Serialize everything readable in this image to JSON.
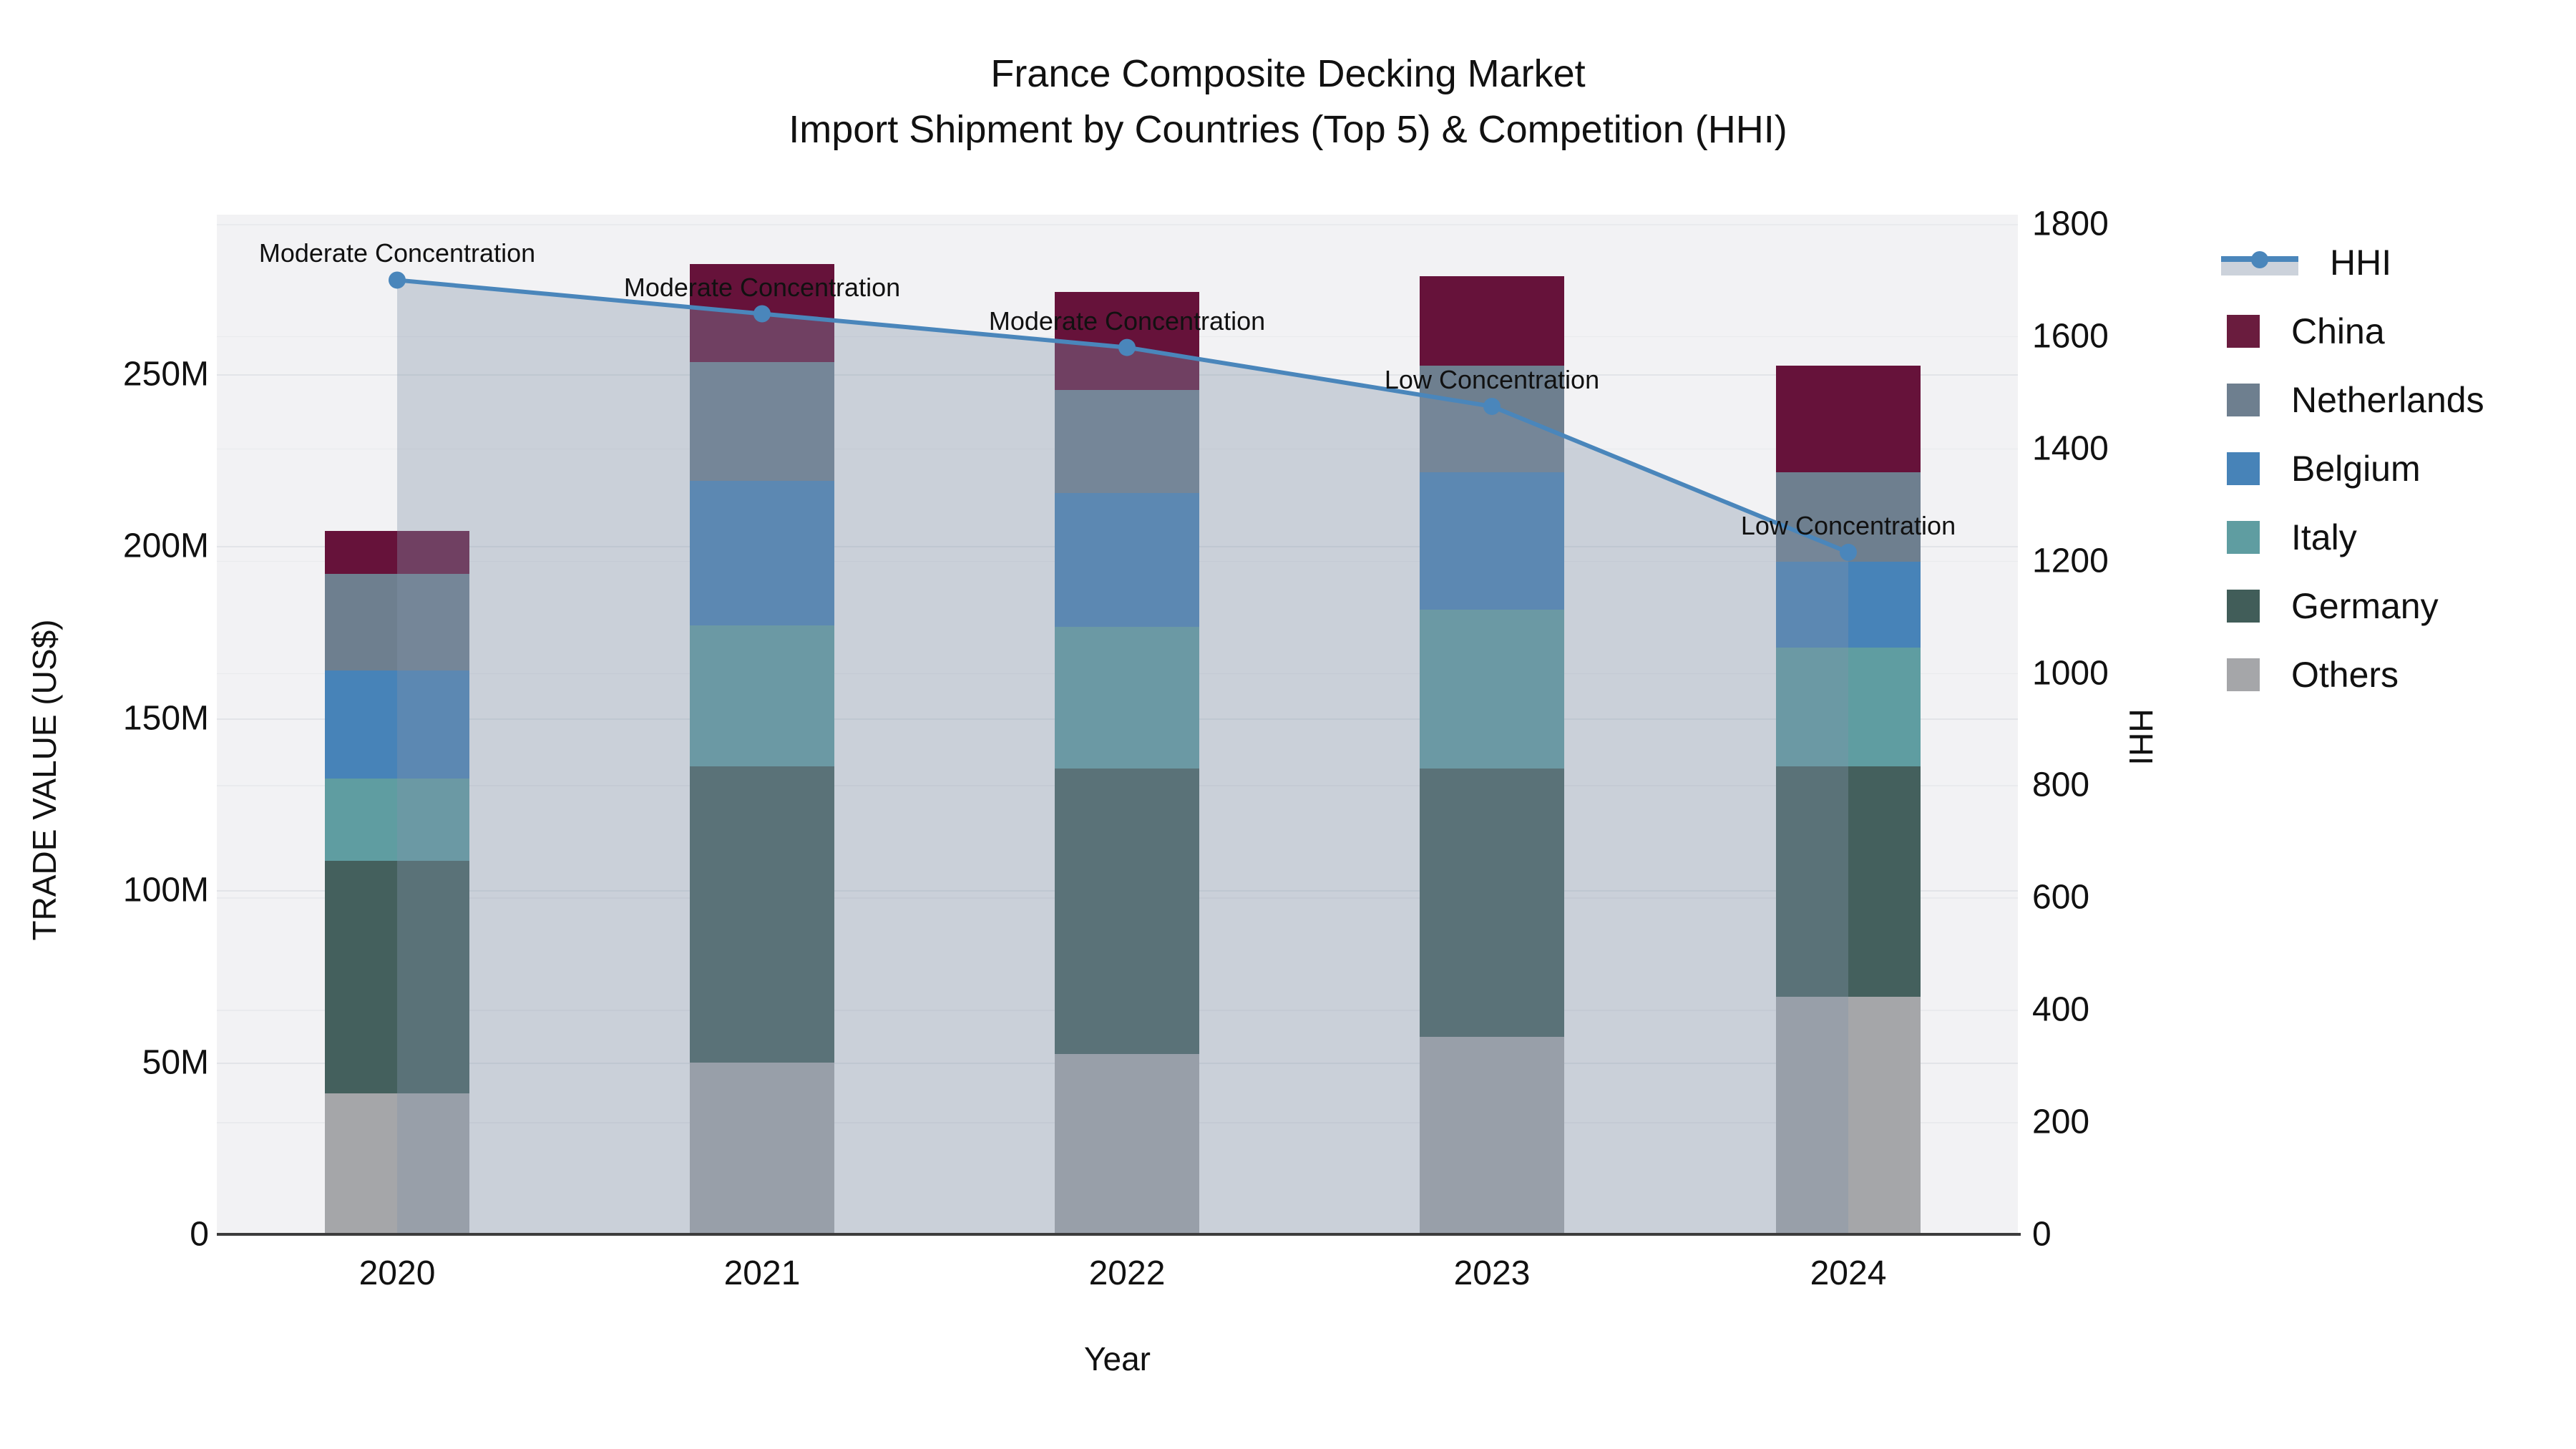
{
  "title": {
    "line1": "France Composite Decking Market",
    "line2": "Import Shipment by Countries (Top 5) & Competition (HHI)"
  },
  "axes": {
    "left": {
      "label": "TRADE VALUE (US$)",
      "ticks": [
        "0",
        "50M",
        "100M",
        "150M",
        "200M",
        "250M"
      ],
      "tick_values": [
        0,
        50,
        100,
        150,
        200,
        250
      ]
    },
    "right": {
      "label": "HHI",
      "ticks": [
        "0",
        "200",
        "400",
        "600",
        "800",
        "1000",
        "1200",
        "1400",
        "1600",
        "1800"
      ],
      "tick_values": [
        0,
        200,
        400,
        600,
        800,
        1000,
        1200,
        1400,
        1600,
        1800
      ]
    },
    "x": {
      "label": "Year",
      "ticks": [
        "2020",
        "2021",
        "2022",
        "2023",
        "2024"
      ]
    }
  },
  "legend": {
    "items": [
      {
        "label": "HHI",
        "type": "line",
        "color": "#4a86bb"
      },
      {
        "label": "China",
        "type": "swatch",
        "color": "#6a1c3e"
      },
      {
        "label": "Netherlands",
        "type": "swatch",
        "color": "#6e7f8f"
      },
      {
        "label": "Belgium",
        "type": "swatch",
        "color": "#4783b8"
      },
      {
        "label": "Italy",
        "type": "swatch",
        "color": "#5f9da1"
      },
      {
        "label": "Germany",
        "type": "swatch",
        "color": "#415d59"
      },
      {
        "label": "Others",
        "type": "swatch",
        "color": "#a5a6a9"
      }
    ]
  },
  "annotations": [
    {
      "year": "2020",
      "text": "Moderate Concentration"
    },
    {
      "year": "2021",
      "text": "Moderate Concentration"
    },
    {
      "year": "2022",
      "text": "Moderate Concentration"
    },
    {
      "year": "2023",
      "text": "Low Concentration"
    },
    {
      "year": "2024",
      "text": "Low Concentration"
    }
  ],
  "chart_data": {
    "type": "bar+line",
    "title": "France Composite Decking Market — Import Shipment by Countries (Top 5) & Competition (HHI)",
    "categories": [
      "2020",
      "2021",
      "2022",
      "2023",
      "2024"
    ],
    "bar_unit": "million US$",
    "stack_order_bottom_to_top": [
      "Others",
      "Germany",
      "Italy",
      "Belgium",
      "Netherlands",
      "China"
    ],
    "series": [
      {
        "name": "China",
        "axis": "left",
        "values": [
          12.5,
          28.5,
          28.5,
          26.0,
          31.0
        ]
      },
      {
        "name": "Netherlands",
        "axis": "left",
        "values": [
          28.0,
          34.5,
          30.0,
          31.0,
          26.0
        ]
      },
      {
        "name": "Belgium",
        "axis": "left",
        "values": [
          31.5,
          42.0,
          39.0,
          40.0,
          25.0
        ]
      },
      {
        "name": "Italy",
        "axis": "left",
        "values": [
          24.0,
          41.0,
          41.0,
          46.0,
          34.5
        ]
      },
      {
        "name": "Germany",
        "axis": "left",
        "values": [
          67.5,
          86.0,
          83.0,
          78.0,
          67.0
        ]
      },
      {
        "name": "Others",
        "axis": "left",
        "values": [
          41.0,
          50.0,
          52.5,
          57.5,
          69.0
        ]
      }
    ],
    "totals": [
      204.5,
      282.0,
      274.0,
      278.5,
      252.5
    ],
    "line_series": {
      "name": "HHI",
      "axis": "right",
      "values": [
        1700,
        1640,
        1580,
        1475,
        1215
      ],
      "area_fill": true
    },
    "xlabel": "Year",
    "ylabel_left": "TRADE VALUE (US$)",
    "ylabel_right": "HHI",
    "ylim_left_musd": [
      0,
      296
    ],
    "ylim_right_hhi": [
      0,
      1817
    ],
    "grid": true,
    "legend_position": "right"
  },
  "colors": {
    "China": "#66123a",
    "Netherlands": "#6e7f8f",
    "Belgium": "#4783b8",
    "Italy": "#5f9da1",
    "Germany": "#44605d",
    "Others": "#a5a6a9",
    "hhi_line": "#4a86bb",
    "area_fill": "rgba(130,146,168,0.36)",
    "plot_bg": "#f2f2f4",
    "grid_left": "#e2e4e8",
    "grid_right": "#e9eaed"
  }
}
